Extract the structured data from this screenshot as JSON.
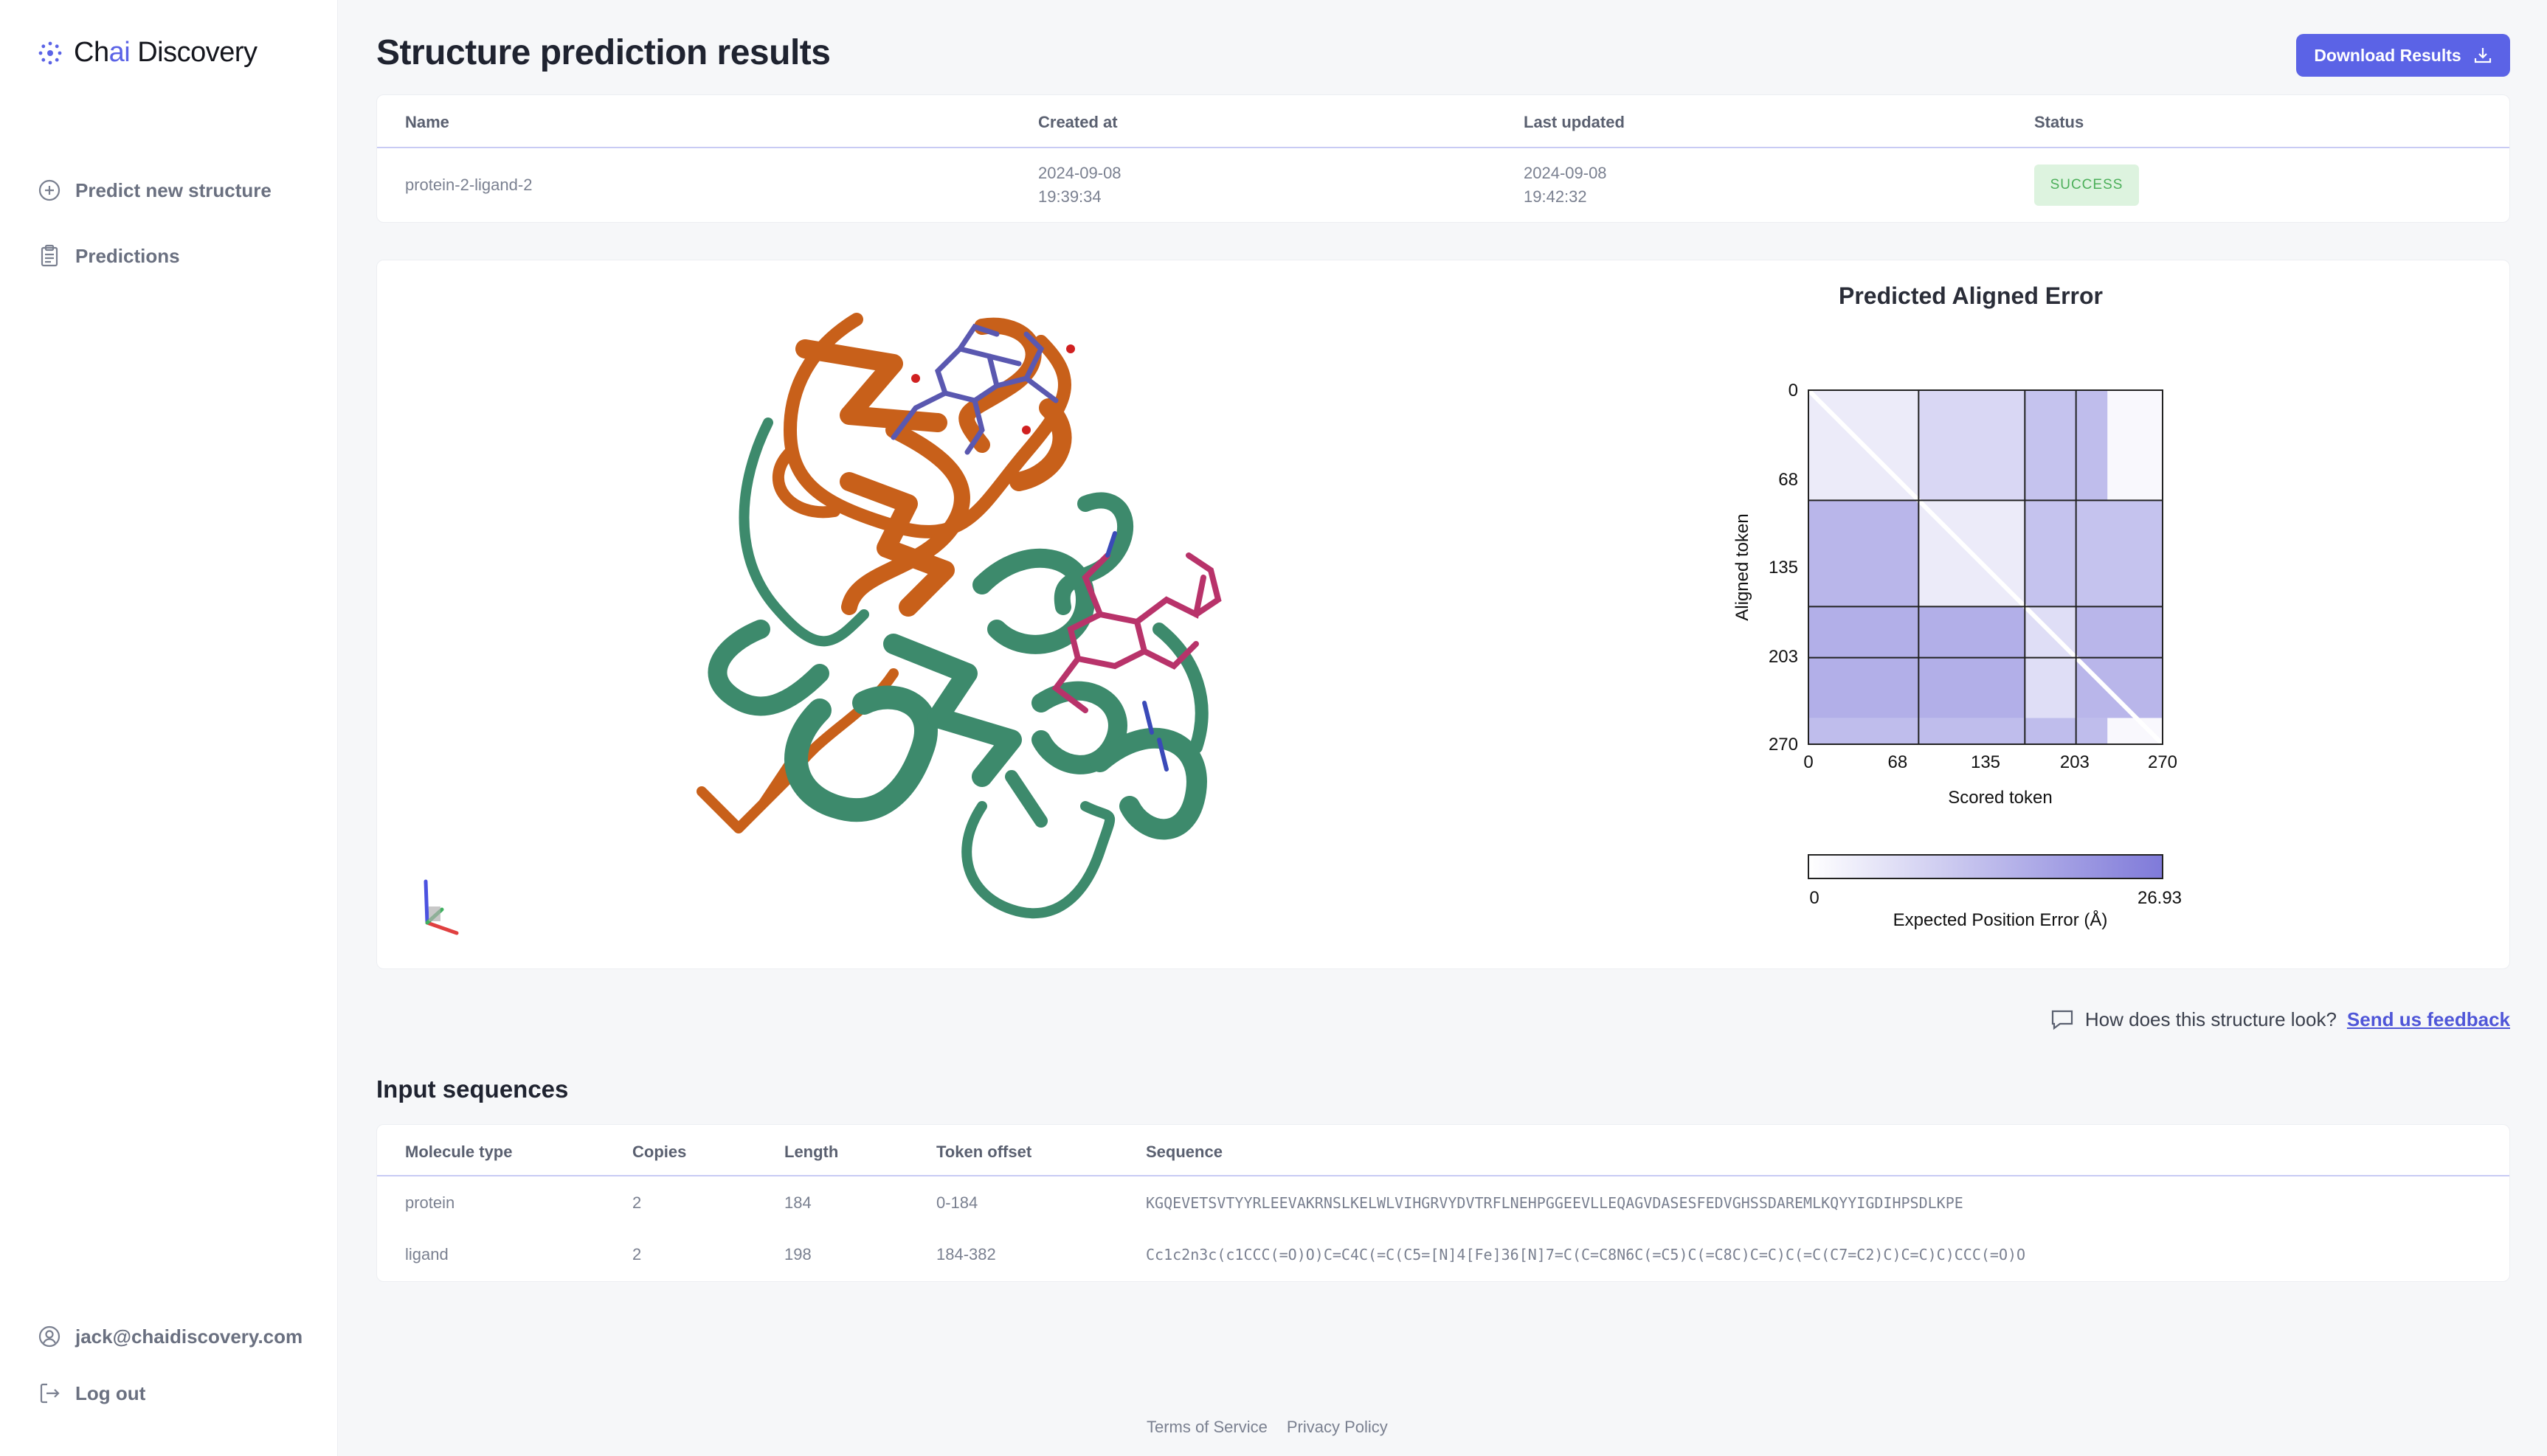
{
  "brand": {
    "name_prefix": "Ch",
    "name_ai": "ai",
    "name_suffix": " Discovery"
  },
  "nav": {
    "predict_label": "Predict new structure",
    "predictions_label": "Predictions",
    "email": "jack@chaidiscovery.com",
    "logout_label": "Log out"
  },
  "page": {
    "title": "Structure prediction results",
    "download_label": "Download Results"
  },
  "results_table": {
    "headers": {
      "name": "Name",
      "created": "Created at",
      "updated": "Last updated",
      "status": "Status"
    },
    "row": {
      "name": "protein-2-ligand-2",
      "created_date": "2024-09-08",
      "created_time": "19:39:34",
      "updated_date": "2024-09-08",
      "updated_time": "19:42:32",
      "status": "SUCCESS"
    }
  },
  "pae": {
    "title": "Predicted Aligned Error",
    "ylabel": "Aligned token",
    "xlabel": "Scored token",
    "ticks": [
      "0",
      "68",
      "135",
      "203",
      "270"
    ],
    "colorbar_min": "0",
    "colorbar_max": "26.93",
    "colorbar_label": "Expected Position Error (Å)"
  },
  "chart_data": {
    "type": "heatmap",
    "title": "Predicted Aligned Error",
    "xlabel": "Scored token",
    "ylabel": "Aligned token",
    "x_range": [
      0,
      270
    ],
    "y_range": [
      0,
      270
    ],
    "ticks": [
      0,
      68,
      135,
      203,
      270
    ],
    "chain_boundaries": [
      84,
      165,
      204
    ],
    "colorbar": {
      "min": 0,
      "max": 26.93,
      "label": "Expected Position Error (Å)"
    },
    "regions": [
      {
        "rows": [
          0,
          84
        ],
        "cols": [
          0,
          84
        ],
        "level": 0.15
      },
      {
        "rows": [
          0,
          84
        ],
        "cols": [
          84,
          165
        ],
        "level": 0.3
      },
      {
        "rows": [
          0,
          84
        ],
        "cols": [
          165,
          204
        ],
        "level": 0.45
      },
      {
        "rows": [
          0,
          84
        ],
        "cols": [
          204,
          228
        ],
        "level": 0.5
      },
      {
        "rows": [
          0,
          84
        ],
        "cols": [
          228,
          270
        ],
        "level": 0.05
      },
      {
        "rows": [
          84,
          165
        ],
        "cols": [
          0,
          84
        ],
        "level": 0.55
      },
      {
        "rows": [
          84,
          165
        ],
        "cols": [
          84,
          165
        ],
        "level": 0.15
      },
      {
        "rows": [
          84,
          165
        ],
        "cols": [
          165,
          270
        ],
        "level": 0.45
      },
      {
        "rows": [
          165,
          250
        ],
        "cols": [
          0,
          165
        ],
        "level": 0.6
      },
      {
        "rows": [
          165,
          250
        ],
        "cols": [
          165,
          204
        ],
        "level": 0.25
      },
      {
        "rows": [
          165,
          250
        ],
        "cols": [
          204,
          270
        ],
        "level": 0.55
      },
      {
        "rows": [
          250,
          270
        ],
        "cols": [
          0,
          228
        ],
        "level": 0.5
      },
      {
        "rows": [
          250,
          270
        ],
        "cols": [
          228,
          270
        ],
        "level": 0.05
      }
    ]
  },
  "feedback": {
    "question": "How does this structure look?",
    "link": "Send us feedback"
  },
  "input_sequences": {
    "title": "Input sequences",
    "headers": {
      "type": "Molecule type",
      "copies": "Copies",
      "length": "Length",
      "offset": "Token offset",
      "sequence": "Sequence"
    },
    "rows": [
      {
        "type": "protein",
        "copies": "2",
        "length": "184",
        "offset": "0-184",
        "sequence": "KGQEVETSVTYYRLEEVAKRNSLKELWLVIHGRVYDVTRFLNEHPGGEEVLLEQAGVDASESFEDVGHSSDAREMLKQYYIGDIHPSDLKPE"
      },
      {
        "type": "ligand",
        "copies": "2",
        "length": "198",
        "offset": "184-382",
        "sequence": "Cc1c2n3c(c1CCC(=O)O)C=C4C(=C(C5=[N]4[Fe]36[N]7=C(C=C8N6C(=C5)C(=C8C)C=C)C(=C(C7=C2)C)C=C)C)CCC(=O)O"
      }
    ]
  },
  "footer": {
    "terms": "Terms of Service",
    "privacy": "Privacy Policy"
  },
  "colors": {
    "accent": "#5b63e6",
    "protein_a": "#c8601a",
    "protein_b": "#3d8a6c",
    "ligand_a": "#b8336a",
    "ligand_b": "#5a58b0",
    "success_bg": "#ddf3df",
    "success_fg": "#4caf5a"
  }
}
